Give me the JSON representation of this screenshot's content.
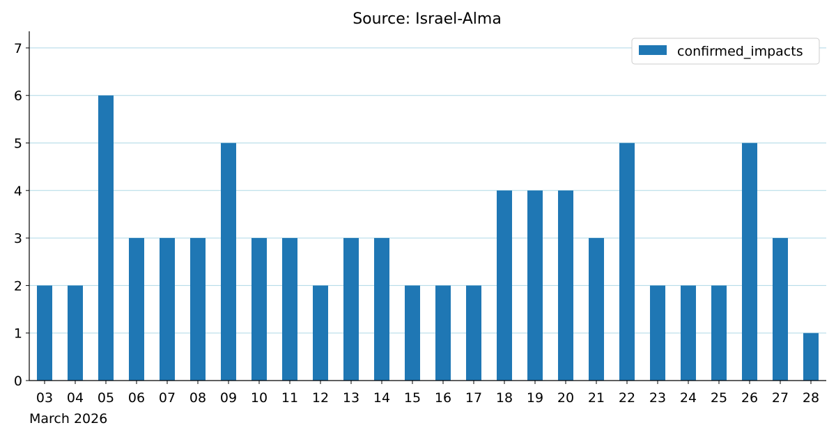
{
  "chart_data": {
    "type": "bar",
    "title": "Source: Israel-Alma",
    "xlabel": "",
    "ylabel": "",
    "x_period_label": "March 2026",
    "categories": [
      "03",
      "04",
      "05",
      "06",
      "07",
      "08",
      "09",
      "10",
      "11",
      "12",
      "13",
      "14",
      "15",
      "16",
      "17",
      "18",
      "19",
      "20",
      "21",
      "22",
      "23",
      "24",
      "25",
      "26",
      "27",
      "28"
    ],
    "series": [
      {
        "name": "confirmed_impacts",
        "values": [
          2,
          2,
          6,
          3,
          3,
          3,
          5,
          3,
          3,
          2,
          3,
          3,
          2,
          2,
          2,
          4,
          4,
          4,
          3,
          5,
          2,
          2,
          2,
          5,
          3,
          1
        ]
      }
    ],
    "ylim": [
      0,
      7.35
    ],
    "yticks": [
      0,
      1,
      2,
      3,
      4,
      5,
      6,
      7
    ],
    "grid": "horizontal",
    "legend_position": "top-right",
    "colors": {
      "bar": "#1f77b4",
      "grid": "#add8e6"
    }
  }
}
